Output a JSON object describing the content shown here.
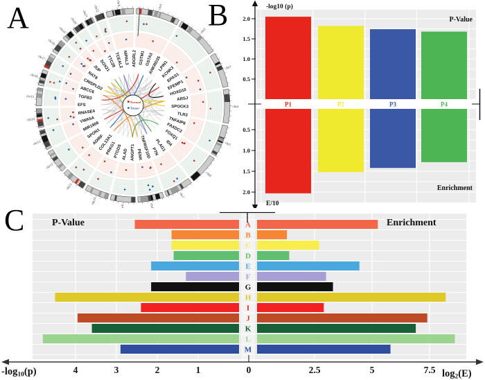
{
  "panels": {
    "a": {
      "label": "A"
    },
    "b": {
      "label": "B"
    },
    "c": {
      "label": "C"
    }
  },
  "chart_data": [
    {
      "id": "circos-panel-a",
      "type": "other",
      "subtype": "circos",
      "legend": [
        "Normal",
        "Tumor"
      ],
      "legend_colors": {
        "normal": "#c0392b",
        "tumor": "#2e5fa3"
      },
      "chromosomes": [
        "chr1",
        "chr2",
        "chr3",
        "chr4",
        "chr5",
        "chr6",
        "chr7",
        "chr8",
        "chr9",
        "chr10",
        "chr11",
        "chr12",
        "chr13",
        "chr14",
        "chr15",
        "chr16",
        "chr17",
        "chr18",
        "chr19",
        "chr20",
        "chr21",
        "chr22",
        "chrX"
      ],
      "genes": [
        "GSTM1",
        "GSTA3",
        "ANKRD35",
        "LPIN1",
        "KCNK3",
        "EPAS1",
        "EFEMP1",
        "HOXD10",
        "ARSJ",
        "SPOCK3",
        "TLR3",
        "TNFAIP8",
        "FAXDC2",
        "FOXQ1",
        "ID4",
        "PLAG1",
        "PTN",
        "TNFRSF10D",
        "PENK",
        "ANGPT1",
        "ALAD",
        "PTGDS",
        "PRKG1",
        "COL13A1",
        "ADIRF",
        "SPON1",
        "MIR1908",
        "VWA5A",
        "RNASE4",
        "EFS",
        "TGFB3",
        "ABCC6",
        "CRISPLD2",
        "NAT8",
        "JUP",
        "SOX21",
        "TTC28",
        "TCEAL2",
        "NIPAL3",
        "ADGRL2"
      ]
    },
    {
      "id": "panel-b",
      "type": "bar",
      "orientation": "vertical-mirrored",
      "categories": [
        "P1",
        "P2",
        "P3",
        "P4"
      ],
      "colors": [
        "#e8251d",
        "#efea2d",
        "#3b58a7",
        "#4db553"
      ],
      "yticks": [
        0.5,
        1.0,
        1.5,
        2.0
      ],
      "ylim": [
        0,
        2.25
      ],
      "series": [
        {
          "name": "P-Value",
          "axis_label": "-log10 (p)",
          "values": [
            2.05,
            1.82,
            1.74,
            1.68
          ]
        },
        {
          "name": "Enrichment",
          "axis_label": "E/10",
          "values": [
            2.03,
            1.52,
            1.42,
            1.28
          ]
        }
      ]
    },
    {
      "id": "panel-c",
      "type": "bar",
      "orientation": "horizontal-mirrored",
      "categories": [
        "A",
        "B",
        "C",
        "D",
        "E",
        "F",
        "G",
        "H",
        "I",
        "J",
        "K",
        "L",
        "M"
      ],
      "colors": [
        "#f26649",
        "#f58634",
        "#f9ed4e",
        "#62be70",
        "#4ba8df",
        "#a79fd4",
        "#111111",
        "#dfc927",
        "#f32222",
        "#bf4a26",
        "#176038",
        "#9ad48e",
        "#2f4f9e"
      ],
      "series": [
        {
          "name": "P-Value",
          "axis_label": {
            "pre": "-log",
            "sub": "10",
            "post": "(p)"
          },
          "ticks": [
            4,
            3,
            2,
            1
          ],
          "values": [
            2.55,
            1.65,
            1.65,
            1.6,
            2.15,
            1.3,
            2.15,
            4.5,
            2.4,
            3.95,
            3.6,
            4.8,
            2.9
          ]
        },
        {
          "name": "Enrichment",
          "axis_label": {
            "pre": "log",
            "sub": "2",
            "post": "(E)"
          },
          "ticks": [
            2.5,
            5,
            7.5
          ],
          "values": [
            5.25,
            1.3,
            2.7,
            1.4,
            4.45,
            3.0,
            3.3,
            8.2,
            2.9,
            7.4,
            6.9,
            8.6,
            5.8
          ]
        }
      ],
      "zero_tick_label": "0"
    }
  ]
}
